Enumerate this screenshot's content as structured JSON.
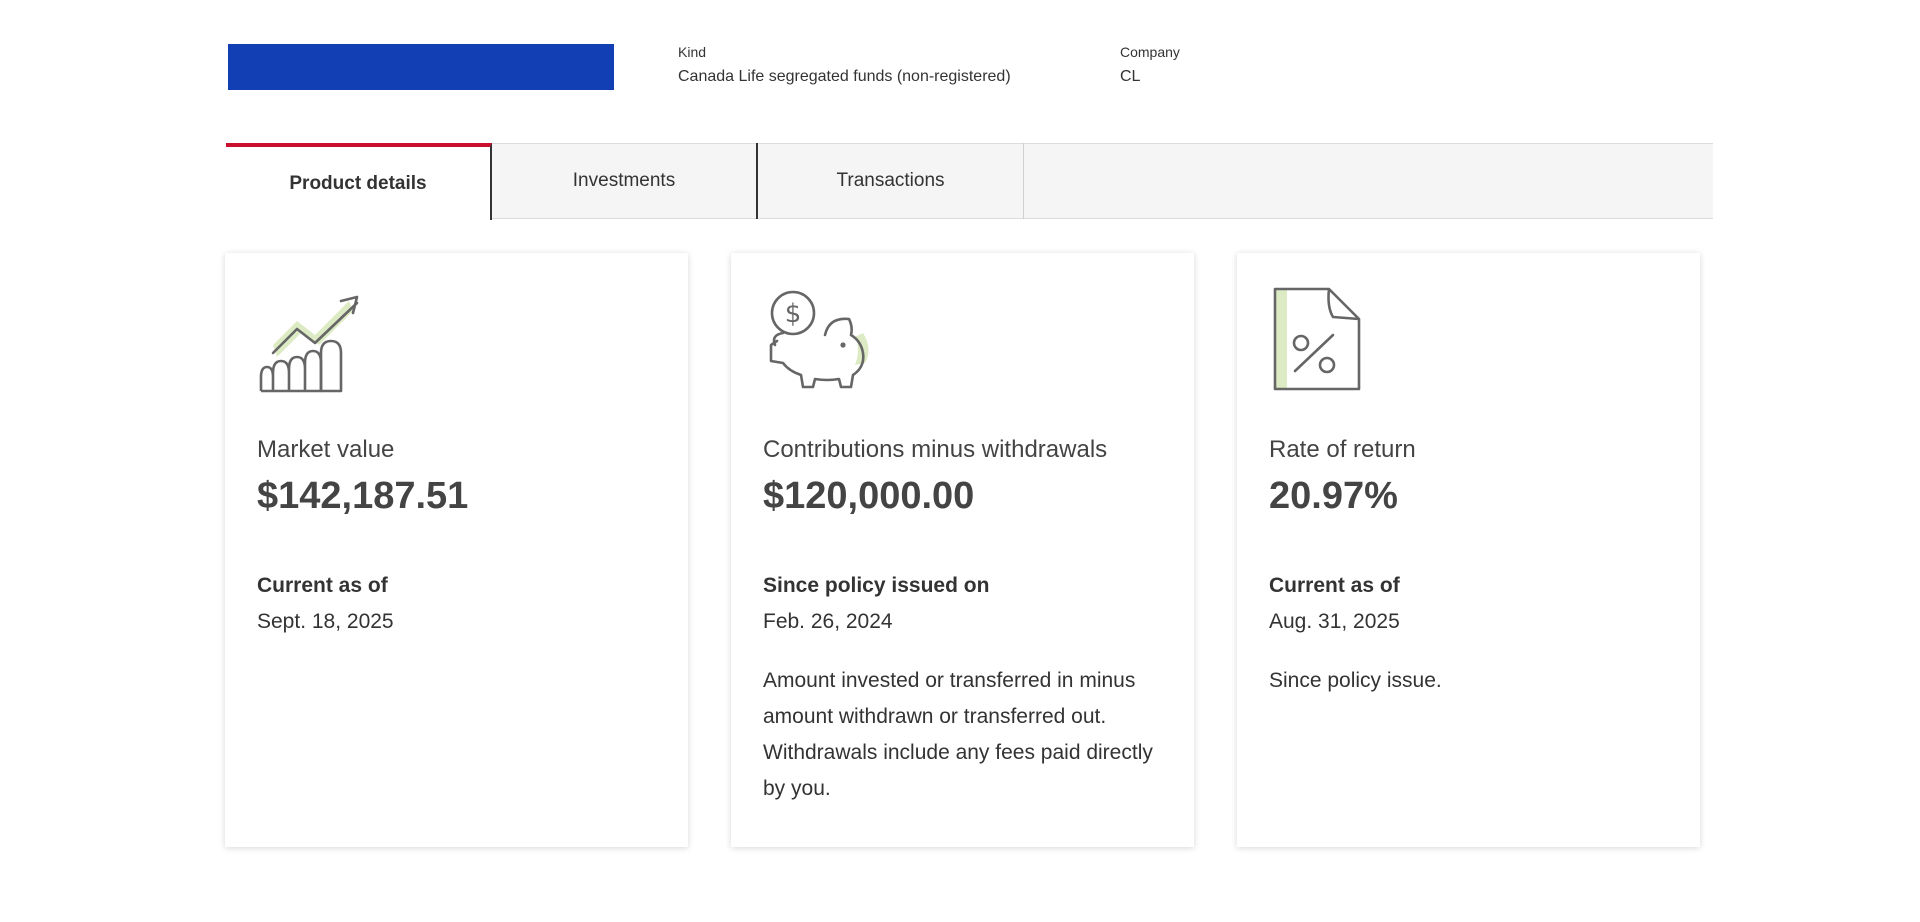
{
  "header": {
    "kind_label": "Kind",
    "kind_value": "Canada Life segregated funds (non-registered)",
    "company_label": "Company",
    "company_value": "CL"
  },
  "tabs": [
    {
      "label": "Product details",
      "active": true
    },
    {
      "label": "Investments",
      "active": false
    },
    {
      "label": "Transactions",
      "active": false
    }
  ],
  "cards": [
    {
      "icon": "growth-chart-icon",
      "title": "Market value",
      "value": "$142,187.51",
      "sub_label": "Current as of",
      "sub_value": "Sept. 18, 2025",
      "note": ""
    },
    {
      "icon": "piggy-bank-icon",
      "title": "Contributions minus withdrawals",
      "value": "$120,000.00",
      "sub_label": "Since policy issued on",
      "sub_value": "Feb. 26, 2024",
      "note": "Amount invested or transferred in minus amount withdrawn or transferred out. Withdrawals include any fees paid directly by you."
    },
    {
      "icon": "percent-document-icon",
      "title": "Rate of return",
      "value": "20.97%",
      "sub_label": "Current as of",
      "sub_value": "Aug. 31, 2025",
      "note": "Since policy issue."
    }
  ],
  "colors": {
    "accent": "#c8102e",
    "redacted": "#1240b4",
    "icon_highlight": "#dcebc4",
    "icon_stroke": "#666666"
  }
}
